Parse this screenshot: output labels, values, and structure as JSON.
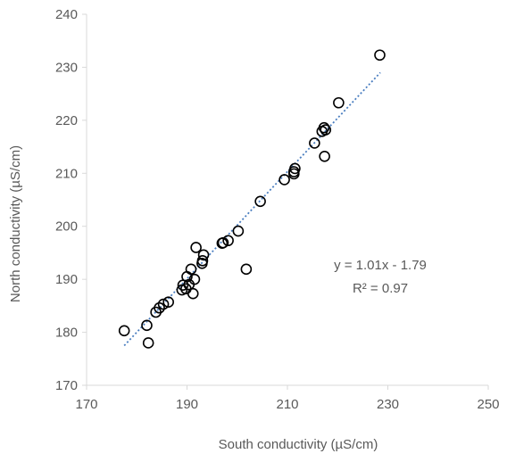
{
  "chart_data": {
    "type": "scatter",
    "title": "",
    "xlabel": "South conductivity (µS/cm)",
    "ylabel": "North conductivity (µS/cm)",
    "xlim": [
      170,
      250
    ],
    "ylim": [
      170,
      240
    ],
    "xticks": [
      "170",
      "190",
      "210",
      "230",
      "250"
    ],
    "yticks": [
      "170",
      "180",
      "190",
      "200",
      "210",
      "220",
      "230",
      "240"
    ],
    "grid": false,
    "marker": "open-circle",
    "point_color": "#000000",
    "trendline_color": "#4a7ec0",
    "trendline": {
      "style": "dotted",
      "slope": 1.01,
      "intercept": -1.79,
      "x_range": [
        177.5,
        228.5
      ]
    },
    "annotations": {
      "equation": "y = 1.01x - 1.79",
      "r_squared": "R² = 0.97"
    },
    "series": [
      {
        "points": [
          [
            177.5,
            180.3
          ],
          [
            182.0,
            181.3
          ],
          [
            182.3,
            178.0
          ],
          [
            183.8,
            183.8
          ],
          [
            184.5,
            184.6
          ],
          [
            185.3,
            185.3
          ],
          [
            186.3,
            185.7
          ],
          [
            189.0,
            188.0
          ],
          [
            189.2,
            188.9
          ],
          [
            189.8,
            188.2
          ],
          [
            190.0,
            190.5
          ],
          [
            190.4,
            189.0
          ],
          [
            190.8,
            191.9
          ],
          [
            191.2,
            187.3
          ],
          [
            191.5,
            190.0
          ],
          [
            191.8,
            196.0
          ],
          [
            193.0,
            193.0
          ],
          [
            193.1,
            193.5
          ],
          [
            193.3,
            194.6
          ],
          [
            197.0,
            196.8
          ],
          [
            197.2,
            196.9
          ],
          [
            198.2,
            197.3
          ],
          [
            200.2,
            199.1
          ],
          [
            201.8,
            191.9
          ],
          [
            204.6,
            204.7
          ],
          [
            209.4,
            208.8
          ],
          [
            211.3,
            209.9
          ],
          [
            211.3,
            210.3
          ],
          [
            211.5,
            210.9
          ],
          [
            215.4,
            215.7
          ],
          [
            216.9,
            217.9
          ],
          [
            217.3,
            218.6
          ],
          [
            217.4,
            213.2
          ],
          [
            217.6,
            218.2
          ],
          [
            220.2,
            223.3
          ],
          [
            228.4,
            232.3
          ]
        ]
      }
    ]
  }
}
